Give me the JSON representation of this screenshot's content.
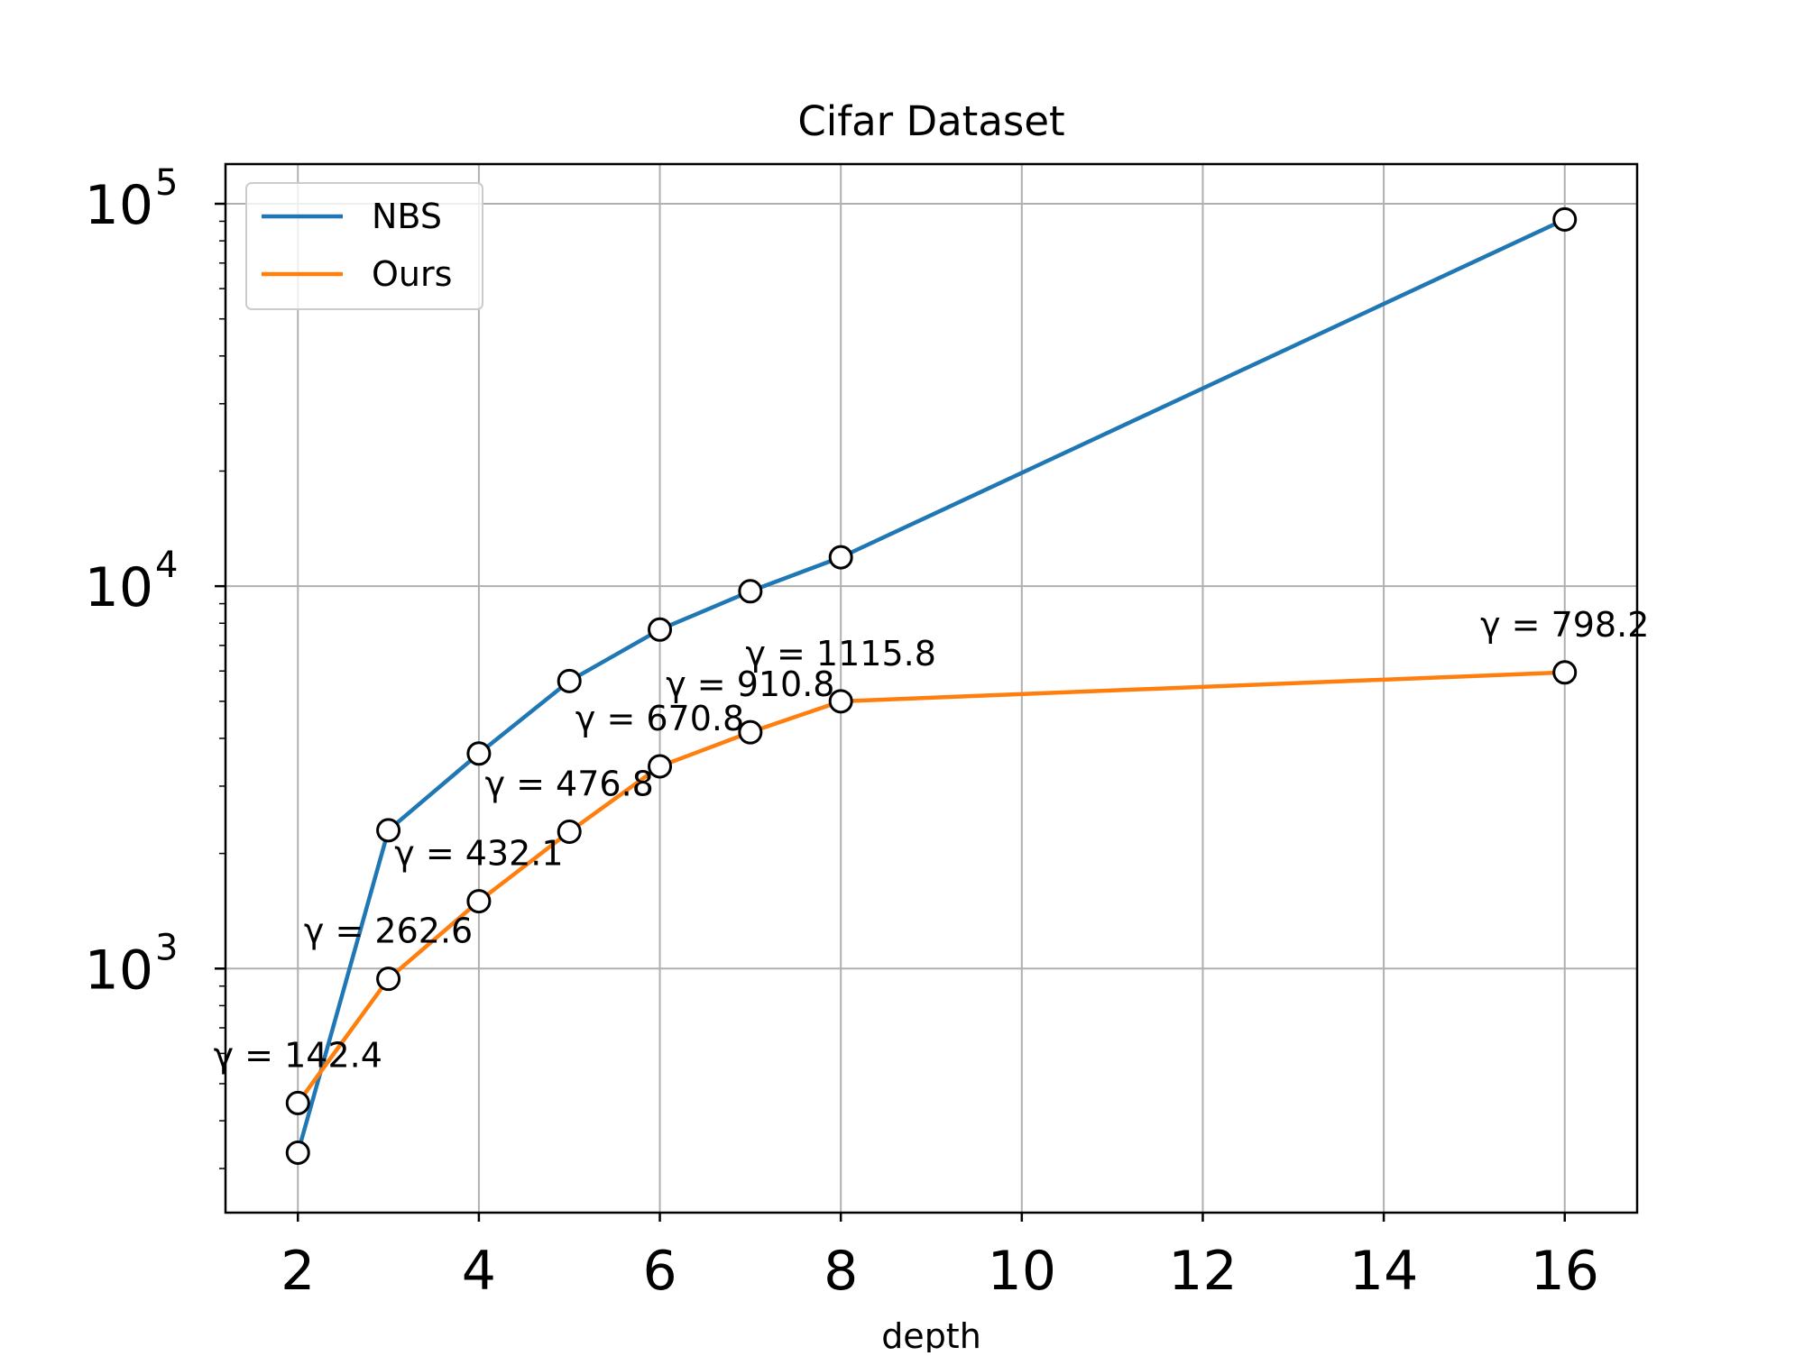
{
  "chart_data": {
    "type": "line",
    "title": "Cifar Dataset",
    "xlabel": "depth",
    "ylabel": "",
    "yscale": "log",
    "xlim": [
      1.2,
      16.8
    ],
    "ylim": [
      230,
      127000
    ],
    "grid": true,
    "legend_position": "top-left",
    "x_ticks": [
      2,
      4,
      6,
      8,
      10,
      12,
      14,
      16
    ],
    "y_ticks": [
      {
        "value": 1000,
        "base": "10",
        "exp": "3"
      },
      {
        "value": 10000,
        "base": "10",
        "exp": "4"
      },
      {
        "value": 100000,
        "base": "10",
        "exp": "5"
      }
    ],
    "series": [
      {
        "name": "NBS",
        "color": "#1f77b4",
        "x": [
          2,
          3,
          4,
          5,
          6,
          7,
          8,
          16
        ],
        "y": [
          330,
          2300,
          3650,
          5650,
          7700,
          9700,
          11900,
          91000
        ]
      },
      {
        "name": "Ours",
        "color": "#ff7f0e",
        "x": [
          2,
          3,
          4,
          5,
          6,
          7,
          8,
          16
        ],
        "y": [
          445,
          940,
          1500,
          2280,
          3380,
          4150,
          5000,
          5950
        ]
      }
    ],
    "annotations": [
      {
        "x": 2,
        "text": "γ = 142.4"
      },
      {
        "x": 3,
        "text": "γ = 262.6"
      },
      {
        "x": 4,
        "text": "γ = 432.1"
      },
      {
        "x": 5,
        "text": "γ = 476.8"
      },
      {
        "x": 6,
        "text": "γ = 670.8"
      },
      {
        "x": 7,
        "text": "γ = 910.8"
      },
      {
        "x": 8,
        "text": "γ = 1115.8"
      },
      {
        "x": 16,
        "text": "γ = 798.2"
      }
    ]
  }
}
